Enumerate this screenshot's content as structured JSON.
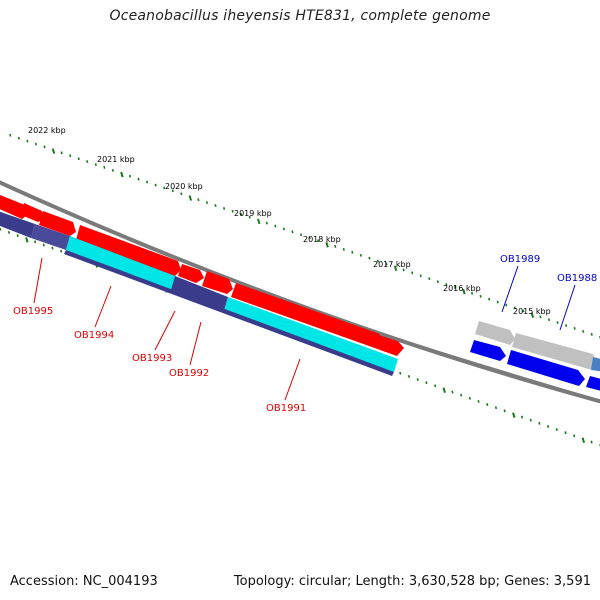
{
  "title": "Oceanobacillus iheyensis HTE831, complete genome",
  "footer": {
    "accession": "Accession: NC_004193",
    "stats": "Topology: circular; Length: 3,630,528 bp; Genes: 3,591"
  },
  "colors": {
    "background": "#ffffff",
    "backbone": "#7a7a7a",
    "forward_gene": "#ff0000",
    "forward_other": "#c0c0c0",
    "forward_blue": "#0000ee",
    "reverse_track": "#3b3b8c",
    "reverse_cyan": "#00e5e5",
    "tick": "#1a7a1a",
    "label_red": "#e00000",
    "label_blue": "#0000cc"
  },
  "scale_labels": [
    "2022 kbp",
    "2021 kbp",
    "2020 kbp",
    "2019 kbp",
    "2018 kbp",
    "2017 kbp",
    "2016 kbp",
    "2015 kbp"
  ],
  "gene_labels": [
    {
      "name": "OB1995",
      "color": "red"
    },
    {
      "name": "OB1994",
      "color": "red"
    },
    {
      "name": "OB1993",
      "color": "red"
    },
    {
      "name": "OB1992",
      "color": "red"
    },
    {
      "name": "OB1991",
      "color": "red"
    },
    {
      "name": "OB1989",
      "color": "blue"
    },
    {
      "name": "OB1988",
      "color": "blue"
    }
  ]
}
